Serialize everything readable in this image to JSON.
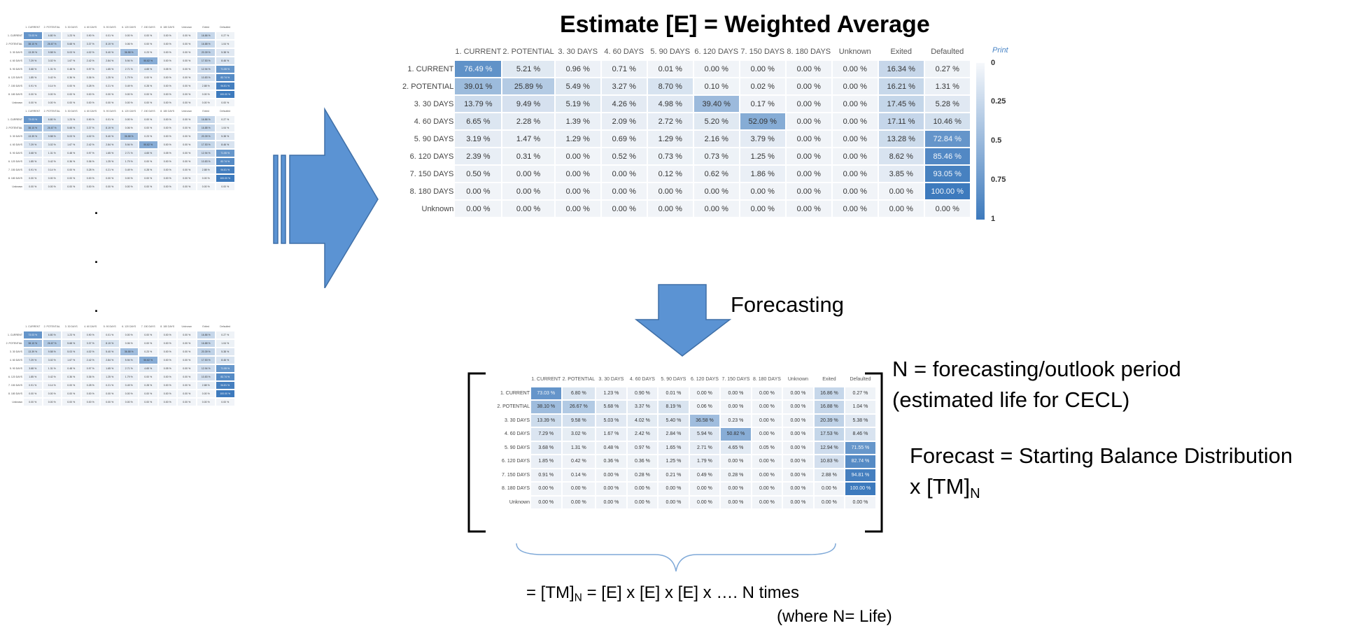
{
  "title": "Estimate [E]  = Weighted Average",
  "forecasting_label": "Forecasting",
  "n_def_line1": "N = forecasting/outlook period",
  "n_def_line2": "(estimated life for CECL)",
  "forecast_line1": "Forecast = Starting Balance Distribution",
  "forecast_line2_pre": "x [TM]",
  "forecast_line2_sub": "N",
  "formula_pre": "=  [TM]",
  "formula_sub": "N",
  "formula_post": "=  [E] x [E] x [E] x …. N times",
  "formula_note": "(where N= Life)",
  "dots": [
    ".",
    ".",
    "."
  ],
  "colorbar": {
    "print_label": "Print",
    "ticks": [
      "0",
      "0.25",
      "0.5",
      "0.75",
      "1"
    ]
  },
  "colors": {
    "arrow": "#5b93d3",
    "arrow_stroke": "#3f6fa7",
    "brace": "#7fa9d8",
    "heat_low": "#f1f4f8",
    "heat_high": "#3d7abd"
  },
  "columns": [
    "1. CURRENT",
    "2. POTENTIAL",
    "3. 30 DAYS",
    "4. 60 DAYS",
    "5. 90 DAYS",
    "6. 120 DAYS",
    "7. 150 DAYS",
    "8. 180 DAYS",
    "Unknown",
    "Exited",
    "Defaulted"
  ],
  "rows": [
    "1. CURRENT",
    "2. POTENTIAL",
    "3. 30 DAYS",
    "4. 60 DAYS",
    "5. 90 DAYS",
    "6. 120 DAYS",
    "7. 150 DAYS",
    "8. 180 DAYS",
    "Unknown"
  ],
  "estimate_matrix": [
    [
      "76.49 %",
      "5.21 %",
      "0.96 %",
      "0.71 %",
      "0.01 %",
      "0.00 %",
      "0.00 %",
      "0.00 %",
      "0.00 %",
      "16.34 %",
      "0.27 %"
    ],
    [
      "39.01 %",
      "25.89 %",
      "5.49 %",
      "3.27 %",
      "8.70 %",
      "0.10 %",
      "0.02 %",
      "0.00 %",
      "0.00 %",
      "16.21 %",
      "1.31 %"
    ],
    [
      "13.79 %",
      "9.49 %",
      "5.19 %",
      "4.26 %",
      "4.98 %",
      "39.40 %",
      "0.17 %",
      "0.00 %",
      "0.00 %",
      "17.45 %",
      "5.28 %"
    ],
    [
      "6.65 %",
      "2.28 %",
      "1.39 %",
      "2.09 %",
      "2.72 %",
      "5.20 %",
      "52.09 %",
      "0.00 %",
      "0.00 %",
      "17.11 %",
      "10.46 %"
    ],
    [
      "3.19 %",
      "1.47 %",
      "1.29 %",
      "0.69 %",
      "1.29 %",
      "2.16 %",
      "3.79 %",
      "0.00 %",
      "0.00 %",
      "13.28 %",
      "72.84 %"
    ],
    [
      "2.39 %",
      "0.31 %",
      "0.00 %",
      "0.52 %",
      "0.73 %",
      "0.73 %",
      "1.25 %",
      "0.00 %",
      "0.00 %",
      "8.62 %",
      "85.46 %"
    ],
    [
      "0.50 %",
      "0.00 %",
      "0.00 %",
      "0.00 %",
      "0.12 %",
      "0.62 %",
      "1.86 %",
      "0.00 %",
      "0.00 %",
      "3.85 %",
      "93.05 %"
    ],
    [
      "0.00 %",
      "0.00 %",
      "0.00 %",
      "0.00 %",
      "0.00 %",
      "0.00 %",
      "0.00 %",
      "0.00 %",
      "0.00 %",
      "0.00 %",
      "100.00 %"
    ],
    [
      "0.00 %",
      "0.00 %",
      "0.00 %",
      "0.00 %",
      "0.00 %",
      "0.00 %",
      "0.00 %",
      "0.00 %",
      "0.00 %",
      "0.00 %",
      "0.00 %"
    ]
  ],
  "forecast_matrix": [
    [
      "73.03 %",
      "6.80 %",
      "1.23 %",
      "0.90 %",
      "0.01 %",
      "0.00 %",
      "0.00 %",
      "0.00 %",
      "0.00 %",
      "16.86 %",
      "0.27 %"
    ],
    [
      "38.10 %",
      "26.67 %",
      "5.68 %",
      "3.37 %",
      "8.19 %",
      "0.06 %",
      "0.00 %",
      "0.00 %",
      "0.00 %",
      "16.88 %",
      "1.04 %"
    ],
    [
      "13.39 %",
      "9.58 %",
      "5.03 %",
      "4.02 %",
      "5.40 %",
      "36.58 %",
      "0.23 %",
      "0.00 %",
      "0.00 %",
      "20.39 %",
      "5.38 %"
    ],
    [
      "7.29 %",
      "3.02 %",
      "1.67 %",
      "2.42 %",
      "2.84 %",
      "5.94 %",
      "50.82 %",
      "0.00 %",
      "0.00 %",
      "17.53 %",
      "8.46 %"
    ],
    [
      "3.68 %",
      "1.31 %",
      "0.48 %",
      "0.97 %",
      "1.65 %",
      "2.71 %",
      "4.65 %",
      "0.05 %",
      "0.00 %",
      "12.94 %",
      "71.55 %"
    ],
    [
      "1.85 %",
      "0.42 %",
      "0.36 %",
      "0.36 %",
      "1.25 %",
      "1.79 %",
      "0.00 %",
      "0.00 %",
      "0.00 %",
      "10.83 %",
      "82.74 %"
    ],
    [
      "0.91 %",
      "0.14 %",
      "0.00 %",
      "0.28 %",
      "0.21 %",
      "0.49 %",
      "0.28 %",
      "0.00 %",
      "0.00 %",
      "2.88 %",
      "94.81 %"
    ],
    [
      "0.00 %",
      "0.00 %",
      "0.00 %",
      "0.00 %",
      "0.00 %",
      "0.00 %",
      "0.00 %",
      "0.00 %",
      "0.00 %",
      "0.00 %",
      "100.00 %"
    ],
    [
      "0.00 %",
      "0.00 %",
      "0.00 %",
      "0.00 %",
      "0.00 %",
      "0.00 %",
      "0.00 %",
      "0.00 %",
      "0.00 %",
      "0.00 %",
      "0.00 %"
    ]
  ],
  "thumb_matrix": [
    [
      "73.03 %",
      "6.80 %",
      "1.23 %",
      "0.90 %",
      "0.01 %",
      "0.00 %",
      "0.00 %",
      "0.00 %",
      "0.00 %",
      "16.86 %",
      "0.27 %"
    ],
    [
      "38.10 %",
      "26.67 %",
      "5.68 %",
      "3.37 %",
      "8.19 %",
      "0.06 %",
      "0.00 %",
      "0.00 %",
      "0.00 %",
      "16.88 %",
      "1.04 %"
    ],
    [
      "13.39 %",
      "9.58 %",
      "5.03 %",
      "4.02 %",
      "5.40 %",
      "36.58 %",
      "0.23 %",
      "0.00 %",
      "0.00 %",
      "20.39 %",
      "5.38 %"
    ],
    [
      "7.29 %",
      "3.02 %",
      "1.67 %",
      "2.42 %",
      "2.84 %",
      "5.94 %",
      "50.82 %",
      "0.00 %",
      "0.00 %",
      "17.53 %",
      "8.46 %"
    ],
    [
      "3.68 %",
      "1.31 %",
      "0.48 %",
      "0.97 %",
      "1.65 %",
      "2.71 %",
      "4.65 %",
      "0.05 %",
      "0.00 %",
      "12.94 %",
      "71.55 %"
    ],
    [
      "1.85 %",
      "0.42 %",
      "0.36 %",
      "0.36 %",
      "1.25 %",
      "1.79 %",
      "0.00 %",
      "0.00 %",
      "0.00 %",
      "10.83 %",
      "82.74 %"
    ],
    [
      "0.91 %",
      "0.14 %",
      "0.00 %",
      "0.28 %",
      "0.21 %",
      "0.49 %",
      "0.28 %",
      "0.00 %",
      "0.00 %",
      "2.88 %",
      "94.81 %"
    ],
    [
      "0.00 %",
      "0.00 %",
      "0.00 %",
      "0.00 %",
      "0.00 %",
      "0.00 %",
      "0.00 %",
      "0.00 %",
      "0.00 %",
      "0.00 %",
      "100.00 %"
    ],
    [
      "0.00 %",
      "0.00 %",
      "0.00 %",
      "0.00 %",
      "0.00 %",
      "0.00 %",
      "0.00 %",
      "0.00 %",
      "0.00 %",
      "0.00 %",
      "0.00 %"
    ]
  ]
}
